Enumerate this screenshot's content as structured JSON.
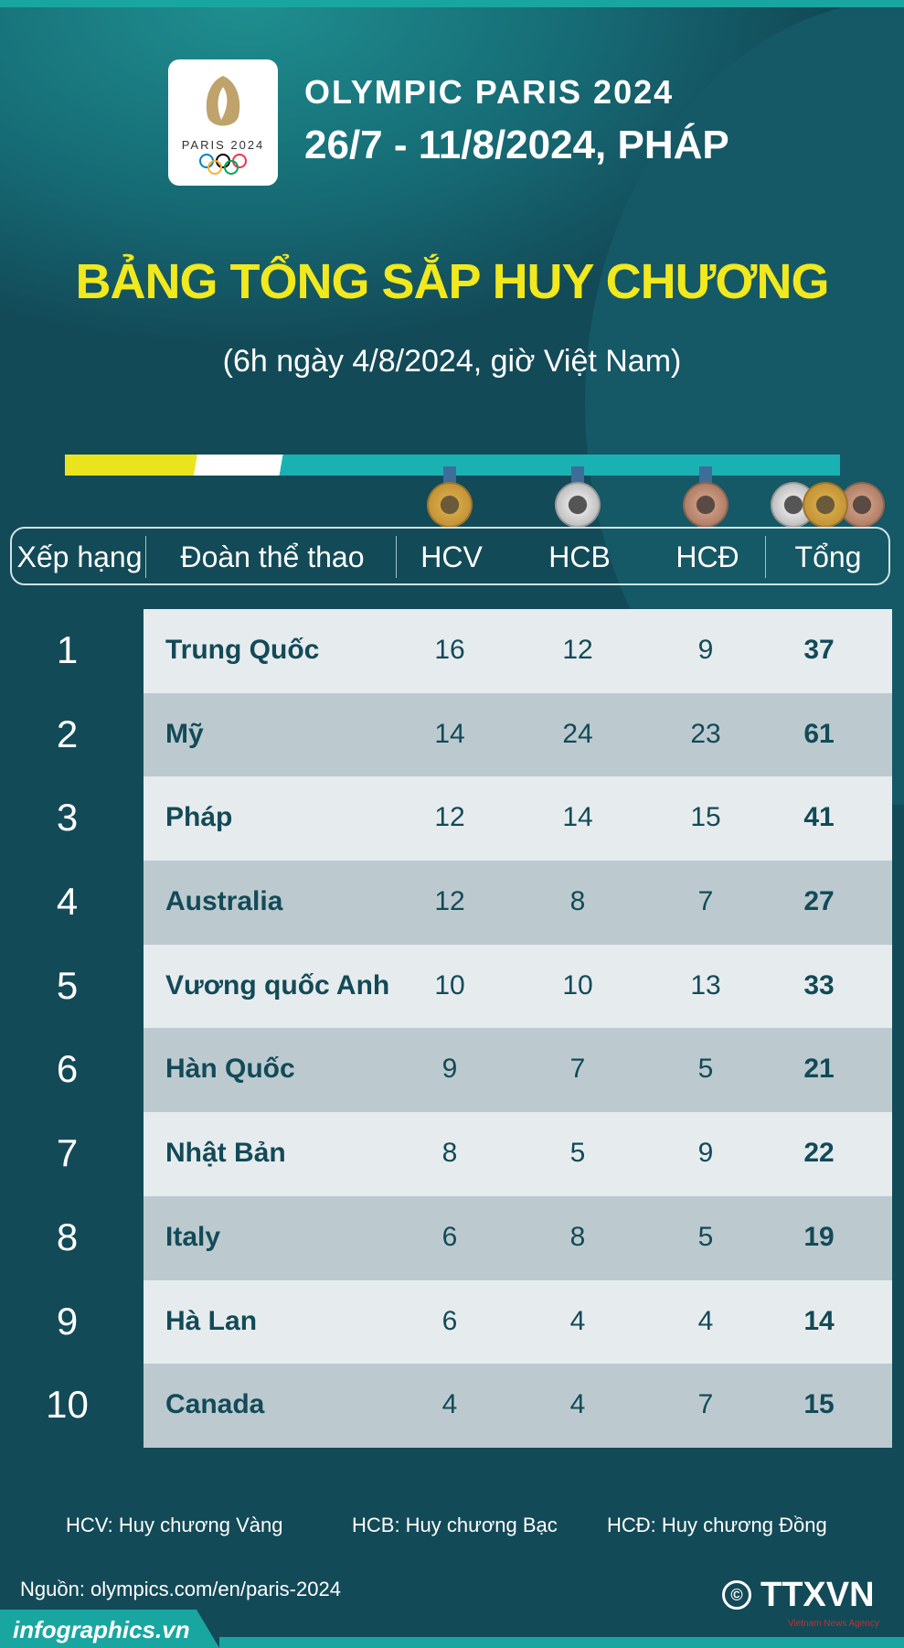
{
  "logo": {
    "text": "PARIS 2024",
    "flame_color": "#bfa36a"
  },
  "header": {
    "line1": "OLYMPIC PARIS 2024",
    "line2": "26/7 - 11/8/2024, PHÁP"
  },
  "title": "BẢNG TỔNG SẮP HUY CHƯƠNG",
  "subtitle": "(6h ngày 4/8/2024, giờ Việt Nam)",
  "colors": {
    "background": "#134a58",
    "title": "#f1e81d",
    "accent": "#1ab1b2",
    "row_light": "#e6ecee",
    "row_dark": "#bccacf"
  },
  "columns": [
    "Xếp hạng",
    "Đoàn thể thao",
    "HCV",
    "HCB",
    "HCĐ",
    "Tổng"
  ],
  "rows": [
    {
      "rank": "1",
      "name": "Trung Quốc",
      "gold": "16",
      "silver": "12",
      "bronze": "9",
      "total": "37"
    },
    {
      "rank": "2",
      "name": "Mỹ",
      "gold": "14",
      "silver": "24",
      "bronze": "23",
      "total": "61"
    },
    {
      "rank": "3",
      "name": "Pháp",
      "gold": "12",
      "silver": "14",
      "bronze": "15",
      "total": "41"
    },
    {
      "rank": "4",
      "name": "Australia",
      "gold": "12",
      "silver": "8",
      "bronze": "7",
      "total": "27"
    },
    {
      "rank": "5",
      "name": "Vương quốc Anh",
      "gold": "10",
      "silver": "10",
      "bronze": "13",
      "total": "33"
    },
    {
      "rank": "6",
      "name": "Hàn Quốc",
      "gold": "9",
      "silver": "7",
      "bronze": "5",
      "total": "21"
    },
    {
      "rank": "7",
      "name": "Nhật Bản",
      "gold": "8",
      "silver": "5",
      "bronze": "9",
      "total": "22"
    },
    {
      "rank": "8",
      "name": "Italy",
      "gold": "6",
      "silver": "8",
      "bronze": "5",
      "total": "19"
    },
    {
      "rank": "9",
      "name": "Hà Lan",
      "gold": "6",
      "silver": "4",
      "bronze": "4",
      "total": "14"
    },
    {
      "rank": "10",
      "name": "Canada",
      "gold": "4",
      "silver": "4",
      "bronze": "7",
      "total": "15"
    }
  ],
  "legend": [
    "HCV: Huy chương Vàng",
    "HCB: Huy chương Bạc",
    "HCĐ: Huy chương Đồng"
  ],
  "source": "Nguồn: olympics.com/en/paris-2024",
  "footer": {
    "site": "infographics.vn",
    "copyright": "©",
    "agency": "TTXVN",
    "agency_sub": "Vietnam News Agency"
  }
}
